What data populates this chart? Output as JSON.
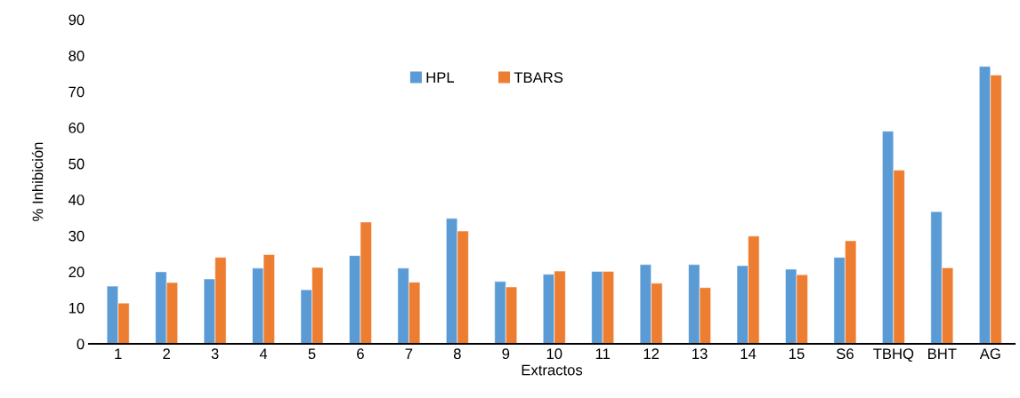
{
  "chart_data": {
    "type": "bar",
    "xlabel": "Extractos",
    "ylabel": "% Inhibición",
    "categories": [
      "1",
      "2",
      "3",
      "4",
      "5",
      "6",
      "7",
      "8",
      "9",
      "10",
      "11",
      "12",
      "13",
      "14",
      "15",
      "S6",
      "TBHQ",
      "BHT",
      "AG"
    ],
    "series": [
      {
        "name": "HPL",
        "color": "#5b9bd5",
        "values": [
          16,
          20,
          18,
          21,
          15,
          24.5,
          21,
          34.8,
          17.3,
          19.3,
          20.1,
          22,
          22,
          21.7,
          20.7,
          24,
          59,
          36.7,
          77
        ]
      },
      {
        "name": "TBARS",
        "color": "#ed7d31",
        "values": [
          11.3,
          17,
          24,
          24.8,
          21.2,
          33.8,
          17.1,
          31.3,
          15.8,
          20.2,
          20.1,
          16.8,
          15.6,
          29.9,
          19.2,
          28.6,
          48.2,
          21.1,
          74.6
        ]
      }
    ],
    "ylim": [
      0,
      90
    ],
    "yticks": [
      0,
      10,
      20,
      30,
      40,
      50,
      60,
      70,
      80,
      90
    ],
    "grid": false,
    "legend": "top"
  }
}
